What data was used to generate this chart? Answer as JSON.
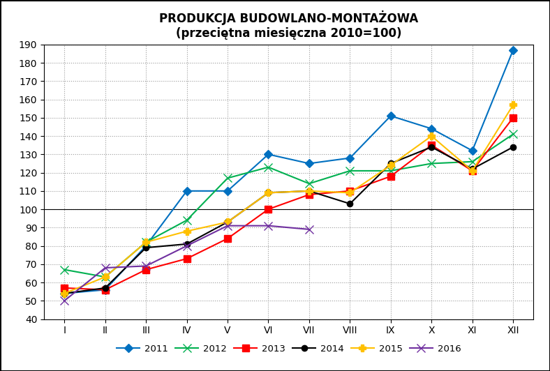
{
  "title_line1": "PRODUKCJA BUDOWLANO-MONTAŻOWA",
  "title_line2": "(przeciętna miesięczna 2010=100)",
  "x_labels": [
    "I",
    "II",
    "III",
    "IV",
    "V",
    "VI",
    "VII",
    "VIII",
    "IX",
    "X",
    "XI",
    "XII"
  ],
  "ylim": [
    40,
    190
  ],
  "yticks": [
    40,
    50,
    60,
    70,
    80,
    90,
    100,
    110,
    120,
    130,
    140,
    150,
    160,
    170,
    180,
    190
  ],
  "series": [
    {
      "label": "2011",
      "color": "#0070C0",
      "marker": "D",
      "markersize": 6,
      "values": [
        54,
        56,
        80,
        110,
        110,
        130,
        125,
        128,
        151,
        144,
        132,
        187
      ]
    },
    {
      "label": "2012",
      "color": "#00B050",
      "marker": "x",
      "markersize": 8,
      "values": [
        67,
        63,
        82,
        94,
        117,
        123,
        114,
        121,
        121,
        125,
        126,
        141
      ]
    },
    {
      "label": "2013",
      "color": "#FF0000",
      "marker": "s",
      "markersize": 7,
      "values": [
        57,
        56,
        67,
        73,
        84,
        100,
        108,
        110,
        118,
        135,
        121,
        150
      ]
    },
    {
      "label": "2014",
      "color": "#000000",
      "marker": "o",
      "markersize": 6,
      "values": [
        54,
        57,
        79,
        81,
        93,
        109,
        110,
        103,
        125,
        134,
        122,
        134
      ]
    },
    {
      "label": "2015",
      "color": "#FFC000",
      "marker": "P",
      "markersize": 7,
      "values": [
        54,
        63,
        82,
        88,
        93,
        109,
        110,
        109,
        124,
        140,
        121,
        157
      ]
    },
    {
      "label": "2016",
      "color": "#7030A0",
      "marker": "x",
      "markersize": 8,
      "values": [
        50,
        68,
        69,
        80,
        91,
        91,
        89,
        null,
        null,
        null,
        null,
        null
      ]
    }
  ],
  "background_color": "#FFFFFF",
  "grid_color": "#999999",
  "figsize": [
    7.88,
    5.32
  ],
  "dpi": 100
}
